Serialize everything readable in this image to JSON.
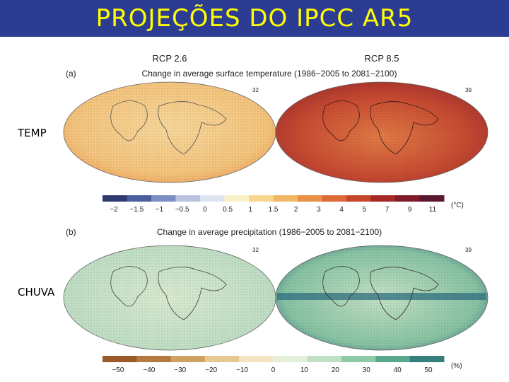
{
  "title": "PROJEÇÕES DO IPCC AR5",
  "side_labels": {
    "temp": "TEMP",
    "rain": "CHUVA"
  },
  "figure": {
    "scenarios": {
      "left": "RCP 2.6",
      "right": "RCP 8.5"
    },
    "panel_a": {
      "letter": "(a)",
      "heading": "Change in average surface temperature (1986−2005 to 2081−2100)",
      "model_counts": {
        "left": "32",
        "right": "39"
      },
      "unit": "(°C)",
      "ticks": [
        "−2",
        "−1.5",
        "−1",
        "−0.5",
        "0",
        "0.5",
        "1",
        "1.5",
        "2",
        "3",
        "4",
        "5",
        "7",
        "9",
        "11"
      ],
      "colors": [
        "#2f3a6e",
        "#4a5d9c",
        "#7d8fc2",
        "#b9c3e0",
        "#dde3ef",
        "#faf0c8",
        "#f8d88e",
        "#f2b764",
        "#e99047",
        "#dd6a36",
        "#c6452b",
        "#a52a27",
        "#7e1d27",
        "#5a1730"
      ]
    },
    "panel_b": {
      "letter": "(b)",
      "heading": "Change in average precipitation (1986−2005 to 2081−2100)",
      "model_counts": {
        "left": "32",
        "right": "39"
      },
      "unit": "(%)",
      "ticks": [
        "−50",
        "−40",
        "−30",
        "−20",
        "−10",
        "0",
        "10",
        "20",
        "30",
        "40",
        "50"
      ],
      "colors": [
        "#9b5a2a",
        "#b47a40",
        "#cfa262",
        "#e6c893",
        "#f3e4c2",
        "#e3efd8",
        "#bfe0c4",
        "#8fcaa8",
        "#5ba88f",
        "#357f7c"
      ]
    }
  }
}
